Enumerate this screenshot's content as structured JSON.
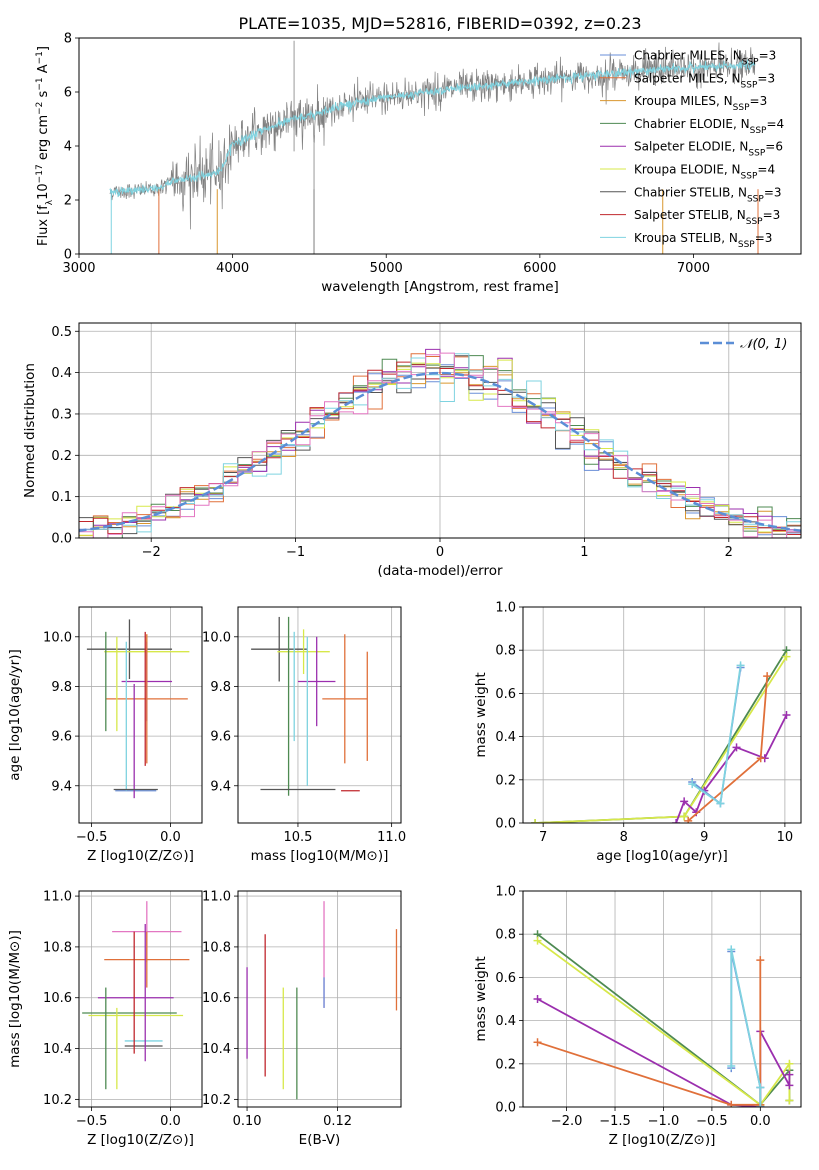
{
  "figure": {
    "title": "PLATE=1035, MJD=52816, FIBERID=0392, z=0.23"
  },
  "legend_items": [
    {
      "label": "Chabrier MILES, N_SSP=3",
      "color": "#6a8fd8"
    },
    {
      "label": "Salpeter MILES, N_SSP=3",
      "color": "#e0703a"
    },
    {
      "label": "Kroupa MILES, N_SSP=3",
      "color": "#d9962e"
    },
    {
      "label": "Chabrier ELODIE, N_SSP=4",
      "color": "#4e8a52"
    },
    {
      "label": "Salpeter ELODIE, N_SSP=6",
      "color": "#9b2fae"
    },
    {
      "label": "Kroupa ELODIE, N_SSP=4",
      "color": "#d7e84a"
    },
    {
      "label": "Chabrier STELIB, N_SSP=3",
      "color": "#555555"
    },
    {
      "label": "Salpeter STELIB, N_SSP=3",
      "color": "#c0272d"
    },
    {
      "label": "Kroupa STELIB, N_SSP=3",
      "color": "#7fd3e0"
    }
  ],
  "chart_data": [
    {
      "id": "spectrum",
      "type": "line",
      "xlabel": "wavelength [Angstrom, rest frame]",
      "ylabel": "Flux [f_λ 10^-17 erg cm^-2 s^-1 A^-1]",
      "xlim": [
        3000,
        7700
      ],
      "ylim": [
        0,
        8
      ],
      "xticks": [
        3000,
        4000,
        5000,
        6000,
        7000
      ],
      "yticks": [
        0,
        2,
        4,
        6,
        8
      ],
      "grid": false,
      "legend": "right",
      "data_color": "#808080",
      "model_color": "#7fd3e0",
      "continuum": {
        "x": [
          3200,
          3500,
          3550,
          3600,
          3700,
          3800,
          3900,
          3950,
          4000,
          4100,
          4200,
          4300,
          4400,
          4500,
          4600,
          4700,
          4800,
          4900,
          5000,
          5200,
          5400,
          5600,
          5800,
          6000,
          6200,
          6400,
          6600,
          6800,
          7000,
          7200,
          7400
        ],
        "y": [
          2.3,
          2.4,
          2.5,
          2.7,
          2.8,
          2.9,
          3.0,
          3.4,
          4.1,
          4.3,
          4.6,
          4.8,
          5.0,
          5.1,
          5.3,
          5.5,
          5.6,
          5.7,
          5.8,
          5.95,
          6.1,
          6.2,
          6.3,
          6.45,
          6.55,
          6.65,
          6.75,
          6.85,
          6.9,
          6.95,
          7.0
        ]
      }
    },
    {
      "id": "residuals",
      "type": "histogram",
      "xlabel": "(data-model)/error",
      "ylabel": "Normed distribution",
      "xlim": [
        -2.5,
        2.5
      ],
      "ylim": [
        0,
        0.52
      ],
      "xticks": [
        -2,
        -1,
        0,
        1,
        2
      ],
      "yticks": [
        0.0,
        0.1,
        0.2,
        0.3,
        0.4,
        0.5
      ],
      "grid": true,
      "legend": "top-right",
      "legend_label": "𝒩(0, 1)",
      "gauss_color": "#5b8ed6"
    },
    {
      "id": "age-vs-Z",
      "type": "errorbar",
      "xlabel": "Z [log10(Z/Z⊙)]",
      "ylabel": "age  [log10(age/yr)]",
      "xlim": [
        -0.58,
        0.2
      ],
      "ylim": [
        9.25,
        10.12
      ],
      "xticks": [
        -0.5,
        0.0
      ],
      "yticks": [
        9.4,
        9.6,
        9.8,
        10.0
      ],
      "grid": true,
      "points": [
        {
          "x": -0.26,
          "xerr": 0.27,
          "y": 9.95,
          "yerr": 0.12,
          "color": "#555555"
        },
        {
          "x": -0.15,
          "xerr": 0.27,
          "y": 9.94,
          "yerr": 0.07,
          "color": "#d7e84a"
        },
        {
          "x": -0.15,
          "xerr": 0.16,
          "y": 9.82,
          "yerr": 0.16,
          "color": "#9b2fae"
        },
        {
          "x": -0.15,
          "xerr": 0.26,
          "y": 9.75,
          "yerr": 0.26,
          "color": "#e0703a"
        },
        {
          "x": -0.22,
          "xerr": 0.13,
          "y": 9.38,
          "yerr": 0.0,
          "color": "#6a8fd8"
        },
        {
          "x": -0.41,
          "xerr": 0.0,
          "y": 9.82,
          "yerr": 0.2,
          "color": "#4e8a52"
        },
        {
          "x": -0.34,
          "xerr": 0.0,
          "y": 9.81,
          "yerr": 0.19,
          "color": "#d7e84a"
        },
        {
          "x": -0.28,
          "xerr": 0.0,
          "y": 9.68,
          "yerr": 0.3,
          "color": "#7fd3e0"
        },
        {
          "x": -0.23,
          "xerr": 0.0,
          "y": 9.58,
          "yerr": 0.23,
          "color": "#9b2fae"
        },
        {
          "x": -0.16,
          "xerr": 0.0,
          "y": 9.75,
          "yerr": 0.27,
          "color": "#c0272d"
        },
        {
          "x": -0.22,
          "xerr": 0.14,
          "y": 9.385,
          "yerr": 0.0,
          "color": "#555555"
        }
      ]
    },
    {
      "id": "age-vs-mass",
      "type": "errorbar",
      "xlabel": "mass [log10(M/M⊙)]",
      "ylabel": "",
      "xlim": [
        10.18,
        11.05
      ],
      "ylim": [
        9.25,
        10.12
      ],
      "xticks": [
        10.5,
        11.0
      ],
      "yticks": [
        9.4,
        9.6,
        9.8,
        10.0
      ],
      "grid": true,
      "points": [
        {
          "x": 10.4,
          "xerr": 0.15,
          "y": 9.95,
          "yerr": 0.13,
          "color": "#555555"
        },
        {
          "x": 10.53,
          "xerr": 0.14,
          "y": 9.94,
          "yerr": 0.09,
          "color": "#d7e84a"
        },
        {
          "x": 10.6,
          "xerr": 0.1,
          "y": 9.82,
          "yerr": 0.18,
          "color": "#9b2fae"
        },
        {
          "x": 10.75,
          "xerr": 0.12,
          "y": 9.75,
          "yerr": 0.26,
          "color": "#e0703a"
        },
        {
          "x": 10.48,
          "xerr": 0.0,
          "y": 9.8,
          "yerr": 0.22,
          "color": "#7fd3e0"
        },
        {
          "x": 10.45,
          "xerr": 0.0,
          "y": 9.72,
          "yerr": 0.36,
          "color": "#4e8a52"
        },
        {
          "x": 10.55,
          "xerr": 0.0,
          "y": 9.7,
          "yerr": 0.3,
          "color": "#7fd3e0"
        },
        {
          "x": 10.5,
          "xerr": 0.2,
          "y": 9.385,
          "yerr": 0.0,
          "color": "#555555"
        },
        {
          "x": 10.78,
          "xerr": 0.05,
          "y": 9.38,
          "yerr": 0.0,
          "color": "#c0272d"
        },
        {
          "x": 10.87,
          "xerr": 0.0,
          "y": 9.72,
          "yerr": 0.22,
          "color": "#e0703a"
        }
      ]
    },
    {
      "id": "mass-weight-vs-age",
      "type": "line",
      "xlabel": "age  [log10(age/yr)]",
      "ylabel": "mass weight",
      "xlim": [
        6.75,
        10.2
      ],
      "ylim": [
        0,
        1
      ],
      "xticks": [
        7,
        8,
        9,
        10
      ],
      "yticks": [
        0.0,
        0.2,
        0.4,
        0.6,
        0.8,
        1.0
      ],
      "grid": true,
      "series": [
        {
          "color": "#4e8a52",
          "x": [
            6.9,
            8.75,
            10.02
          ],
          "y": [
            0.0,
            0.03,
            0.8
          ]
        },
        {
          "color": "#d7e84a",
          "x": [
            6.9,
            8.75,
            10.02
          ],
          "y": [
            0.0,
            0.03,
            0.77
          ]
        },
        {
          "color": "#9b2fae",
          "x": [
            8.65,
            8.75,
            8.9,
            9.0,
            9.4,
            9.75,
            10.02
          ],
          "y": [
            0.0,
            0.1,
            0.05,
            0.15,
            0.35,
            0.3,
            0.5
          ]
        },
        {
          "color": "#e0703a",
          "x": [
            8.8,
            9.7,
            9.78
          ],
          "y": [
            0.01,
            0.3,
            0.68
          ]
        },
        {
          "color": "#6a8fd8",
          "x": [
            8.85,
            9.2,
            9.45
          ],
          "y": [
            0.19,
            0.09,
            0.72
          ]
        },
        {
          "color": "#7fd3e0",
          "x": [
            8.85,
            9.2,
            9.45
          ],
          "y": [
            0.18,
            0.09,
            0.73
          ]
        }
      ]
    },
    {
      "id": "mass-vs-Z",
      "type": "errorbar",
      "xlabel": "Z [log10(Z/Z⊙)]",
      "ylabel": "mass [log10(M/M⊙)]",
      "xlim": [
        -0.58,
        0.2
      ],
      "ylim": [
        10.17,
        11.02
      ],
      "xticks": [
        -0.5,
        0.0
      ],
      "yticks": [
        10.2,
        10.4,
        10.6,
        10.8,
        11.0
      ],
      "grid": true,
      "points": [
        {
          "x": -0.15,
          "xerr": 0.22,
          "y": 10.86,
          "yerr": 0.12,
          "color": "#e377c2"
        },
        {
          "x": -0.15,
          "xerr": 0.27,
          "y": 10.75,
          "yerr": 0.11,
          "color": "#e0703a"
        },
        {
          "x": -0.22,
          "xerr": 0.24,
          "y": 10.6,
          "yerr": 0.0,
          "color": "#9b2fae"
        },
        {
          "x": -0.26,
          "xerr": 0.3,
          "y": 10.54,
          "yerr": 0.0,
          "color": "#4e8a52"
        },
        {
          "x": -0.22,
          "xerr": 0.3,
          "y": 10.53,
          "yerr": 0.0,
          "color": "#d7e84a"
        },
        {
          "x": -0.17,
          "xerr": 0.12,
          "y": 10.43,
          "yerr": 0.0,
          "color": "#7fd3e0"
        },
        {
          "x": -0.17,
          "xerr": 0.12,
          "y": 10.41,
          "yerr": 0.0,
          "color": "#555555"
        },
        {
          "x": -0.41,
          "xerr": 0.0,
          "y": 10.44,
          "yerr": 0.2,
          "color": "#4e8a52"
        },
        {
          "x": -0.34,
          "xerr": 0.0,
          "y": 10.4,
          "yerr": 0.16,
          "color": "#d7e84a"
        },
        {
          "x": -0.23,
          "xerr": 0.0,
          "y": 10.62,
          "yerr": 0.24,
          "color": "#c0272d"
        },
        {
          "x": -0.16,
          "xerr": 0.0,
          "y": 10.62,
          "yerr": 0.27,
          "color": "#9b2fae"
        }
      ]
    },
    {
      "id": "mass-vs-EBV",
      "type": "errorbar",
      "xlabel": "E(B-V)",
      "ylabel": "",
      "xlim": [
        0.098,
        0.134
      ],
      "ylim": [
        10.17,
        11.02
      ],
      "xticks": [
        0.1,
        0.12
      ],
      "yticks": [
        10.2,
        10.4,
        10.6,
        10.8,
        11.0
      ],
      "grid": true,
      "points": [
        {
          "x": 0.1,
          "xerr": 0,
          "y": 10.54,
          "yerr": 0.18,
          "color": "#9b2fae"
        },
        {
          "x": 0.104,
          "xerr": 0,
          "y": 10.57,
          "yerr": 0.28,
          "color": "#c0272d"
        },
        {
          "x": 0.108,
          "xerr": 0,
          "y": 10.44,
          "yerr": 0.2,
          "color": "#d7e84a"
        },
        {
          "x": 0.111,
          "xerr": 0,
          "y": 10.42,
          "yerr": 0.22,
          "color": "#4e8a52"
        },
        {
          "x": 0.117,
          "xerr": 0,
          "y": 10.77,
          "yerr": 0.21,
          "color": "#e377c2"
        },
        {
          "x": 0.117,
          "xerr": 0,
          "y": 10.62,
          "yerr": 0.06,
          "color": "#6a8fd8"
        },
        {
          "x": 0.133,
          "xerr": 0,
          "y": 10.71,
          "yerr": 0.16,
          "color": "#e0703a"
        }
      ]
    },
    {
      "id": "mass-weight-vs-Z",
      "type": "line",
      "xlabel": "Z [log10(Z/Z⊙)]",
      "ylabel": "mass weight",
      "xlim": [
        -2.45,
        0.42
      ],
      "ylim": [
        0,
        1
      ],
      "xticks": [
        -2.0,
        -1.5,
        -1.0,
        -0.5,
        0.0
      ],
      "yticks": [
        0.0,
        0.2,
        0.4,
        0.6,
        0.8,
        1.0
      ],
      "grid": true,
      "series": [
        {
          "color": "#4e8a52",
          "x": [
            -2.3,
            0.0,
            0.3,
            0.3
          ],
          "y": [
            0.8,
            0.01,
            0.17,
            0.03
          ]
        },
        {
          "color": "#d7e84a",
          "x": [
            -2.3,
            0.0,
            0.3,
            0.3
          ],
          "y": [
            0.77,
            0.01,
            0.2,
            0.03
          ]
        },
        {
          "color": "#9b2fae",
          "x": [
            -2.3,
            -0.3,
            0.0,
            0.0,
            0.3,
            0.3
          ],
          "y": [
            0.5,
            0.01,
            0.0,
            0.35,
            0.1,
            0.15
          ]
        },
        {
          "color": "#e0703a",
          "x": [
            -2.3,
            -0.3,
            0.0,
            0.0
          ],
          "y": [
            0.3,
            0.01,
            0.01,
            0.68
          ]
        },
        {
          "color": "#6a8fd8",
          "x": [
            -0.3,
            -0.3,
            0.0,
            0.0
          ],
          "y": [
            0.18,
            0.72,
            0.09,
            0.0
          ]
        },
        {
          "color": "#7fd3e0",
          "x": [
            -0.3,
            -0.3,
            0.0,
            0.0
          ],
          "y": [
            0.19,
            0.73,
            0.09,
            0.0
          ]
        }
      ]
    }
  ]
}
